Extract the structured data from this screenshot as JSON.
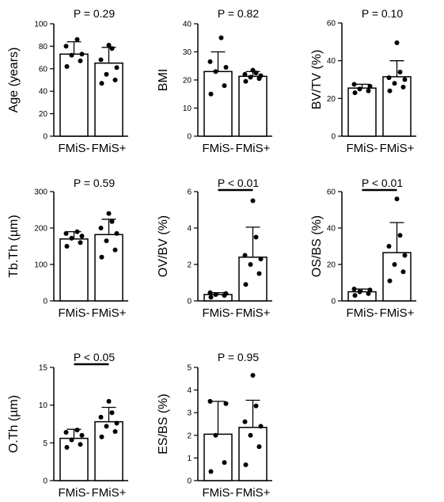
{
  "chart_data": [
    {
      "type": "bar",
      "title": "",
      "pvalue": "P = 0.29",
      "ylabel": "Age (years)",
      "ylim": [
        0,
        100
      ],
      "yticks": [
        "0",
        "20",
        "40",
        "60",
        "80",
        "100"
      ],
      "yticks_num": [
        0,
        20,
        40,
        60,
        80,
        100
      ],
      "categories": [
        "FMiS-",
        "FMiS+"
      ],
      "means": [
        73,
        65
      ],
      "sd": [
        11,
        14
      ],
      "points": [
        [
          62,
          67,
          72,
          73,
          80,
          86
        ],
        [
          47,
          50,
          55,
          61,
          68,
          78,
          81
        ]
      ],
      "significance_bar": false
    },
    {
      "type": "bar",
      "title": "",
      "pvalue": "P = 0.82",
      "ylabel": "BMI",
      "ylim": [
        0,
        40
      ],
      "yticks": [
        "0",
        "10",
        "20",
        "30",
        "40"
      ],
      "yticks_num": [
        0,
        10,
        20,
        30,
        40
      ],
      "categories": [
        "FMiS-",
        "FMiS+"
      ],
      "means": [
        23,
        21.3
      ],
      "sd": [
        7,
        1.7
      ],
      "points": [
        [
          15,
          18,
          23,
          24.5,
          26.5,
          35
        ],
        [
          19.5,
          20.5,
          21,
          21.5,
          22,
          22.5,
          23.5
        ]
      ],
      "significance_bar": false
    },
    {
      "type": "bar",
      "title": "",
      "pvalue": "P = 0.10",
      "ylabel": "BV/TV (%)",
      "ylim": [
        0,
        60
      ],
      "yticks": [
        "0",
        "20",
        "40",
        "60"
      ],
      "yticks_num": [
        0,
        20,
        40,
        60
      ],
      "categories": [
        "FMiS-",
        "FMiS+"
      ],
      "means": [
        25.5,
        31.5
      ],
      "sd": [
        2,
        8.5
      ],
      "points": [
        [
          23,
          24,
          25,
          26.5,
          27.5
        ],
        [
          24,
          26,
          28,
          30,
          31,
          34,
          49.5
        ]
      ],
      "significance_bar": false
    },
    {
      "type": "bar",
      "title": "",
      "pvalue": "P = 0.59",
      "ylabel": "Tb.Th (µm)",
      "ylim": [
        0,
        300
      ],
      "yticks": [
        "0",
        "100",
        "200",
        "300"
      ],
      "yticks_num": [
        0,
        100,
        200,
        300
      ],
      "categories": [
        "FMiS-",
        "FMiS+"
      ],
      "means": [
        170,
        182
      ],
      "sd": [
        20,
        42
      ],
      "points": [
        [
          150,
          160,
          172,
          178,
          185,
          190
        ],
        [
          120,
          140,
          165,
          185,
          200,
          218,
          240
        ]
      ],
      "significance_bar": false
    },
    {
      "type": "bar",
      "title": "",
      "pvalue": "P < 0.01",
      "ylabel": "OV/BV (%)",
      "ylim": [
        0,
        6
      ],
      "yticks": [
        "0",
        "2",
        "4",
        "6"
      ],
      "yticks_num": [
        0,
        2,
        4,
        6
      ],
      "categories": [
        "FMiS-",
        "FMiS+"
      ],
      "means": [
        0.35,
        2.4
      ],
      "sd": [
        0.1,
        1.65
      ],
      "points": [
        [
          0.2,
          0.3,
          0.35,
          0.4,
          0.45
        ],
        [
          0.9,
          1.5,
          2.0,
          2.3,
          2.5,
          3.5,
          5.5
        ]
      ],
      "significance_bar": true
    },
    {
      "type": "bar",
      "title": "",
      "pvalue": "P < 0.01",
      "ylabel": "OS/BS (%)",
      "ylim": [
        0,
        60
      ],
      "yticks": [
        "0",
        "20",
        "40",
        "60"
      ],
      "yticks_num": [
        0,
        20,
        40,
        60
      ],
      "categories": [
        "FMiS-",
        "FMiS+"
      ],
      "means": [
        5,
        26.5
      ],
      "sd": [
        1.5,
        16.5
      ],
      "points": [
        [
          3,
          4,
          5,
          6,
          6.5
        ],
        [
          11,
          16,
          20,
          25,
          30,
          36,
          56
        ]
      ],
      "significance_bar": true
    },
    {
      "type": "bar",
      "title": "",
      "pvalue": "P < 0.05",
      "ylabel": "O.Th (µm)",
      "ylim": [
        0,
        15
      ],
      "yticks": [
        "0",
        "5",
        "10",
        "15"
      ],
      "yticks_num": [
        0,
        5,
        10,
        15
      ],
      "categories": [
        "FMiS-",
        "FMiS+"
      ],
      "means": [
        5.6,
        7.8
      ],
      "sd": [
        1.2,
        1.9
      ],
      "points": [
        [
          4.4,
          4.8,
          5.4,
          6.0,
          6.4,
          6.7
        ],
        [
          5.8,
          6.5,
          7.2,
          7.6,
          8.4,
          9.0,
          10.5
        ]
      ],
      "significance_bar": true
    },
    {
      "type": "bar",
      "title": "",
      "pvalue": "P =  0.95",
      "ylabel": "ES/BS (%)",
      "ylim": [
        0,
        5
      ],
      "yticks": [
        "0",
        "1",
        "2",
        "3",
        "4",
        "5"
      ],
      "yticks_num": [
        0,
        1,
        2,
        3,
        4,
        5
      ],
      "categories": [
        "FMiS-",
        "FMiS+"
      ],
      "means": [
        2.05,
        2.35
      ],
      "sd": [
        1.45,
        1.2
      ],
      "points": [
        [
          0.4,
          0.8,
          2.0,
          3.4,
          3.5
        ],
        [
          0.7,
          1.5,
          2.0,
          2.4,
          2.6,
          3.3,
          4.65
        ]
      ],
      "significance_bar": false
    }
  ]
}
